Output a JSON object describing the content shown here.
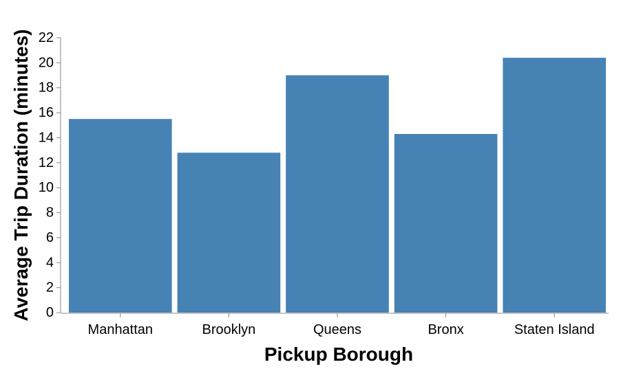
{
  "chart_data": {
    "type": "bar",
    "categories": [
      "Manhattan",
      "Brooklyn",
      "Queens",
      "Bronx",
      "Staten Island"
    ],
    "values": [
      15.5,
      12.8,
      19.0,
      14.3,
      20.4
    ],
    "xlabel": "Pickup Borough",
    "ylabel": "Average Trip Duration (minutes)",
    "ylim": [
      0,
      22
    ],
    "yticks": [
      0,
      2,
      4,
      6,
      8,
      10,
      12,
      14,
      16,
      18,
      20,
      22
    ],
    "bar_color": "#4682b4",
    "grid": false,
    "legend": "none"
  }
}
